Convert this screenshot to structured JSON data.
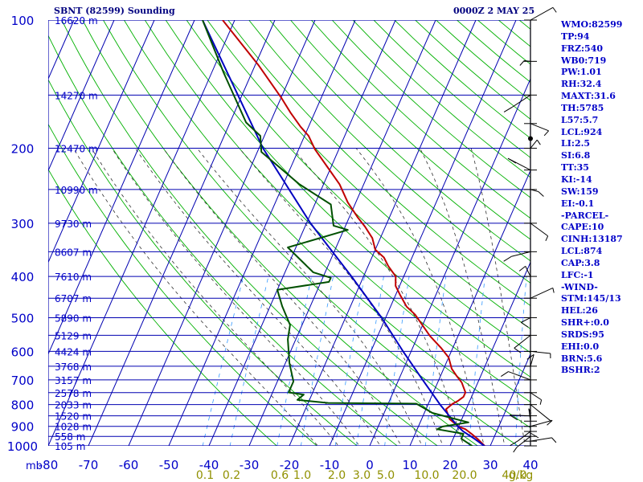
{
  "header": {
    "station": "SBNT (82599) Sounding",
    "valid_time": "0000Z  2 MAY 25"
  },
  "indices": [
    "WMO:82599",
    "TP:94",
    "FRZ:540",
    "WB0:719",
    "PW:1.01",
    "RH:32.4",
    "MAXT:31.6",
    "TH:5785",
    "L57:5.7",
    "LCL:924",
    "LI:2.5",
    "SI:6.8",
    "TT:35",
    "KI:-14",
    "SW:159",
    "EI:-0.1",
    "-PARCEL-",
    "CAPE:10",
    "CINH:13187",
    "LCL:874",
    "CAP:3.8",
    "LFC:-1",
    "-WIND-",
    "STM:145/13",
    "HEL:26",
    "SHR+:0.0",
    "SRDS:95",
    "EHI:0.0",
    "BRN:5.6",
    "BSHR:2"
  ],
  "colors": {
    "isobar": "#0000b0",
    "isotherm": "#0000b0",
    "dry_adiabat": "#00b000",
    "moist_adiabat": "#303030",
    "mixing_ratio": "#3399ff",
    "temperature": "#c00000",
    "dewpoint": "#005000",
    "parcel": "#0000c0",
    "axis_text": "#0000c8",
    "mixing_text": "#909000"
  },
  "chart_data": {
    "type": "line",
    "skew": "skew-T log-P",
    "x_axis": {
      "unit_label": "mb",
      "ticks": [
        -80,
        -70,
        -60,
        -50,
        -40,
        -30,
        -20,
        -10,
        0,
        10,
        20,
        30,
        40
      ],
      "range": [
        -80,
        40
      ]
    },
    "y_axis": {
      "ticks": [
        100,
        200,
        300,
        400,
        500,
        600,
        700,
        800,
        900,
        1000
      ],
      "range": [
        1000,
        100
      ],
      "scale": "log"
    },
    "height_labels": [
      {
        "p": 100,
        "label": "16620 m"
      },
      {
        "p": 150,
        "label": "14270 m"
      },
      {
        "p": 200,
        "label": "12470 m"
      },
      {
        "p": 250,
        "label": "10990 m"
      },
      {
        "p": 300,
        "label": "9730 m"
      },
      {
        "p": 350,
        "label": "8607 m"
      },
      {
        "p": 400,
        "label": "7610 m"
      },
      {
        "p": 450,
        "label": "6707 m"
      },
      {
        "p": 500,
        "label": "5890 m"
      },
      {
        "p": 550,
        "label": "5129 m"
      },
      {
        "p": 600,
        "label": "4424 m"
      },
      {
        "p": 650,
        "label": "3768 m"
      },
      {
        "p": 700,
        "label": "3157 m"
      },
      {
        "p": 750,
        "label": "2578 m"
      },
      {
        "p": 800,
        "label": "2033 m"
      },
      {
        "p": 850,
        "label": "1520 m"
      },
      {
        "p": 900,
        "label": "1028 m"
      },
      {
        "p": 950,
        "label": "558 m"
      },
      {
        "p": 1000,
        "label": "105 m"
      }
    ],
    "mixing_ratio_labels": [
      "0.1",
      "0.2",
      "0.6",
      "1.0",
      "2.0",
      "3.0",
      "5.0",
      "10.0",
      "20.0",
      "40.0",
      "g/kg"
    ],
    "series": [
      {
        "key": "temperature",
        "points": [
          [
            1006,
            29
          ],
          [
            962,
            26
          ],
          [
            937,
            24
          ],
          [
            914,
            22
          ],
          [
            901,
            20
          ],
          [
            866,
            17
          ],
          [
            843,
            16
          ],
          [
            820,
            15
          ],
          [
            797,
            16
          ],
          [
            785,
            17
          ],
          [
            767,
            18
          ],
          [
            749,
            18
          ],
          [
            710,
            16
          ],
          [
            685,
            14
          ],
          [
            659,
            12
          ],
          [
            620,
            10
          ],
          [
            588,
            7
          ],
          [
            552,
            3
          ],
          [
            521,
            0
          ],
          [
            492,
            -3
          ],
          [
            471,
            -6
          ],
          [
            441,
            -9
          ],
          [
            421,
            -11
          ],
          [
            400,
            -12
          ],
          [
            378,
            -15
          ],
          [
            361,
            -17
          ],
          [
            346,
            -20
          ],
          [
            325,
            -22
          ],
          [
            306,
            -25
          ],
          [
            290,
            -28
          ],
          [
            268,
            -32
          ],
          [
            243,
            -36
          ],
          [
            221,
            -41
          ],
          [
            201,
            -46
          ],
          [
            187,
            -49
          ],
          [
            178,
            -52
          ],
          [
            165,
            -56
          ],
          [
            152,
            -60
          ],
          [
            128,
            -69
          ],
          [
            100,
            -83
          ]
        ]
      },
      {
        "key": "dewpoint",
        "points": [
          [
            1006,
            26
          ],
          [
            962,
            22
          ],
          [
            937,
            22
          ],
          [
            914,
            15
          ],
          [
            901,
            16
          ],
          [
            881,
            22
          ],
          [
            863,
            18
          ],
          [
            837,
            12
          ],
          [
            796,
            7
          ],
          [
            793,
            -15
          ],
          [
            780,
            -23
          ],
          [
            758,
            -22
          ],
          [
            749,
            -26
          ],
          [
            706,
            -26
          ],
          [
            639,
            -29
          ],
          [
            562,
            -32
          ],
          [
            520,
            -33
          ],
          [
            470,
            -37
          ],
          [
            430,
            -40
          ],
          [
            412,
            -28
          ],
          [
            403,
            -28
          ],
          [
            391,
            -33
          ],
          [
            342,
            -42
          ],
          [
            311,
            -29
          ],
          [
            304,
            -33
          ],
          [
            271,
            -36
          ],
          [
            243,
            -46
          ],
          [
            204,
            -59
          ],
          [
            187,
            -61
          ],
          [
            174,
            -66
          ],
          [
            133,
            -77
          ],
          [
            100,
            -88
          ]
        ]
      },
      {
        "key": "parcel",
        "points": [
          [
            1006,
            29
          ],
          [
            959,
            25
          ],
          [
            924,
            21.6
          ],
          [
            900,
            19.8
          ],
          [
            850,
            16.5
          ],
          [
            800,
            13
          ],
          [
            700,
            6
          ],
          [
            600,
            -2
          ],
          [
            500,
            -11
          ],
          [
            400,
            -23
          ],
          [
            300,
            -39
          ],
          [
            200,
            -59
          ],
          [
            100,
            -88
          ]
        ]
      }
    ]
  }
}
